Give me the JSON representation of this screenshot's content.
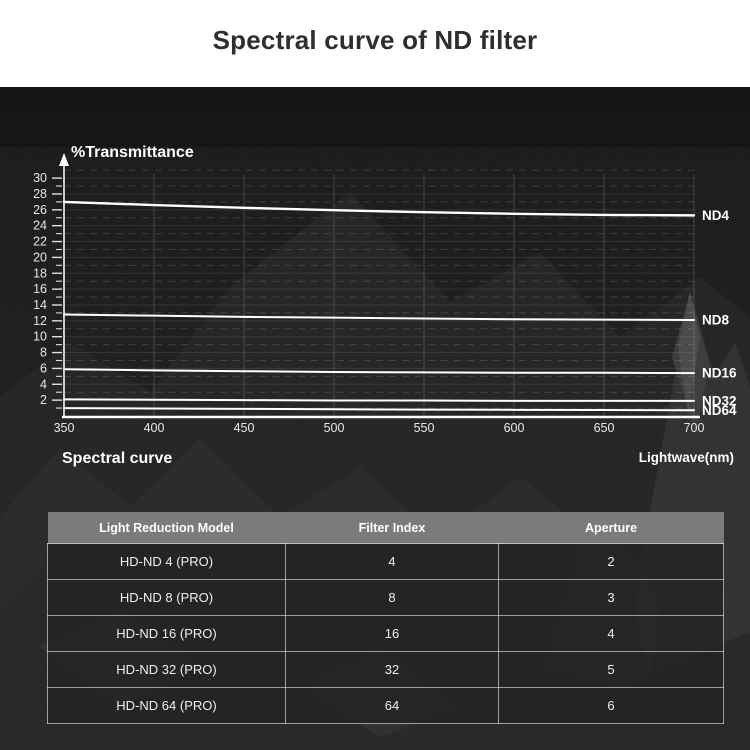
{
  "header": {
    "title": "Spectral curve of ND filter"
  },
  "chart_data": {
    "type": "line",
    "title": "%Transmittance",
    "xlabel": "Lightwave(nm)",
    "corner_label": "Spectral curve",
    "x": [
      350,
      400,
      450,
      500,
      550,
      600,
      650,
      700
    ],
    "x_tick_labels": [
      "350",
      "400",
      "450",
      "500",
      "550",
      "600",
      "650",
      "700"
    ],
    "xlim": [
      350,
      700
    ],
    "ylim": [
      0,
      31
    ],
    "y_label_step": 2,
    "y_label_max": 30,
    "grid": true,
    "legend_position": "right of line ends",
    "series": [
      {
        "name": "ND4",
        "values": [
          27.0,
          26.6,
          26.25,
          25.95,
          25.7,
          25.5,
          25.35,
          25.3
        ]
      },
      {
        "name": "ND8",
        "values": [
          12.8,
          12.65,
          12.5,
          12.4,
          12.3,
          12.2,
          12.15,
          12.1
        ]
      },
      {
        "name": "ND16",
        "values": [
          5.9,
          5.75,
          5.65,
          5.55,
          5.5,
          5.45,
          5.45,
          5.4
        ]
      },
      {
        "name": "ND32",
        "values": [
          2.1,
          2.05,
          2.0,
          1.95,
          1.95,
          1.9,
          1.9,
          1.9
        ]
      },
      {
        "name": "ND64",
        "values": [
          1.0,
          0.95,
          0.9,
          0.85,
          0.8,
          0.78,
          0.75,
          0.72
        ]
      }
    ],
    "line_color": "#ffffff"
  },
  "table": {
    "headers": [
      "Light Reduction Model",
      "Filter Index",
      "Aperture"
    ],
    "rows": [
      [
        "HD-ND 4 (PRO)",
        "4",
        "2"
      ],
      [
        "HD-ND 8 (PRO)",
        "8",
        "3"
      ],
      [
        "HD-ND 16 (PRO)",
        "16",
        "4"
      ],
      [
        "HD-ND 32 (PRO)",
        "32",
        "5"
      ],
      [
        "HD-ND 64 (PRO)",
        "64",
        "6"
      ]
    ]
  },
  "colors": {
    "page_header_bg": "#ffffff",
    "page_title_color": "#2e2e2e",
    "body_bg": "#1b1b1b",
    "chart_line": "#ffffff",
    "axis_text": "#e8e8e8",
    "table_header_bg": "#7b7b7b",
    "table_header_text": "#ffffff",
    "table_row_bg": "rgba(34,34,34,0.78)",
    "table_border": "rgba(236,236,236,0.6)"
  }
}
